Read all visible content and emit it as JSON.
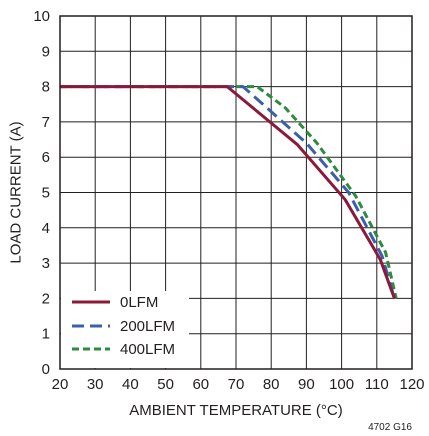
{
  "chart_data": {
    "type": "line",
    "title": "",
    "xlabel": "AMBIENT TEMPERATURE  (°C)",
    "ylabel": "LOAD CURRENT (A)",
    "xlim": [
      20,
      120
    ],
    "ylim": [
      0,
      10
    ],
    "xticks": [
      20,
      30,
      40,
      50,
      60,
      70,
      80,
      90,
      100,
      110,
      120
    ],
    "yticks": [
      0,
      1,
      2,
      3,
      4,
      5,
      6,
      7,
      8,
      9,
      10
    ],
    "grid": true,
    "legend_position": "bottom-left",
    "figure_id": "4702 G16",
    "series": [
      {
        "name": "0LFM",
        "color": "#8b1a3a",
        "dash": "solid",
        "x": [
          20,
          67.5,
          87.5,
          101,
          111,
          115
        ],
        "y": [
          8,
          8,
          6.35,
          4.8,
          3.1,
          2.0
        ]
      },
      {
        "name": "200LFM",
        "color": "#3b5fa8",
        "dash": "dashed",
        "x": [
          20,
          72,
          90,
          102,
          111.5,
          115
        ],
        "y": [
          8,
          8,
          6.4,
          5.0,
          3.2,
          2.0
        ]
      },
      {
        "name": "400LFM",
        "color": "#2e8b3d",
        "dash": "dashed",
        "x": [
          20,
          76,
          84,
          93,
          104,
          112.5,
          115.5
        ],
        "y": [
          8,
          8,
          7.4,
          6.4,
          4.9,
          3.3,
          2.0
        ]
      }
    ]
  }
}
